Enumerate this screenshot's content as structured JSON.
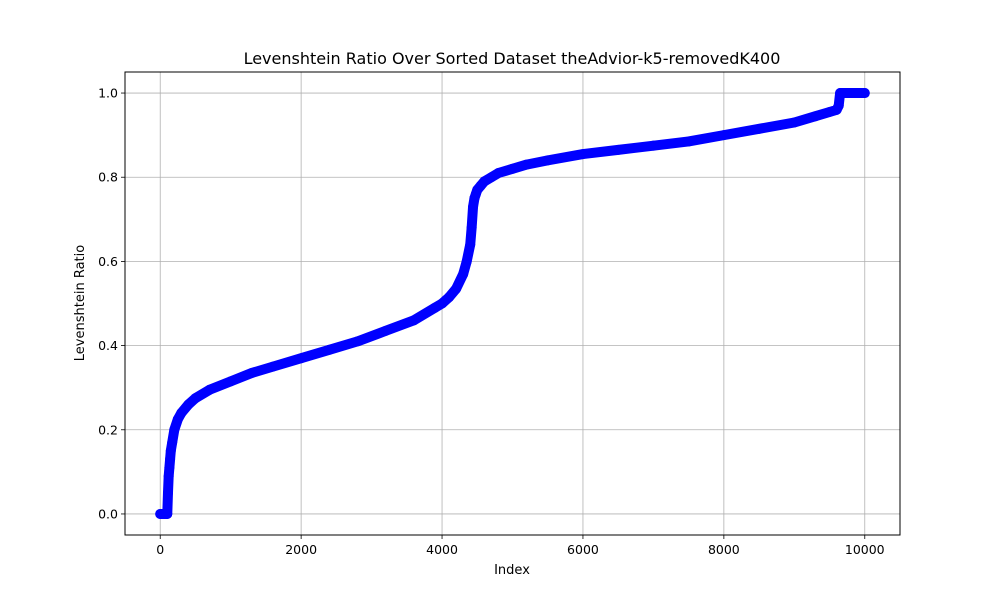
{
  "chart_data": {
    "type": "line",
    "title": "Levenshtein Ratio Over Sorted Dataset theAdvior-k5-removedK400",
    "xlabel": "Index",
    "ylabel": "Levenshtein Ratio",
    "xlim": [
      -500,
      10500
    ],
    "ylim": [
      -0.05,
      1.05
    ],
    "x_ticks": [
      0,
      2000,
      4000,
      6000,
      8000,
      10000
    ],
    "x_tick_labels": [
      "0",
      "2000",
      "4000",
      "6000",
      "8000",
      "10000"
    ],
    "y_ticks": [
      0.0,
      0.2,
      0.4,
      0.6,
      0.8,
      1.0
    ],
    "y_tick_labels": [
      "0.0",
      "0.2",
      "0.4",
      "0.6",
      "0.8",
      "1.0"
    ],
    "grid": true,
    "series": [
      {
        "color": "#0000ff",
        "marker": "circle",
        "x": [
          0,
          20,
          40,
          60,
          80,
          90,
          100,
          110,
          120,
          130,
          140,
          150,
          170,
          200,
          250,
          300,
          400,
          500,
          700,
          1000,
          1300,
          1600,
          2000,
          2400,
          2800,
          3200,
          3600,
          3900,
          4000,
          4100,
          4200,
          4300,
          4350,
          4400,
          4420,
          4440,
          4460,
          4480,
          4500,
          4550,
          4600,
          4700,
          4800,
          5000,
          5200,
          5500,
          6000,
          6500,
          7000,
          7500,
          8000,
          8500,
          9000,
          9300,
          9500,
          9600,
          9630,
          9650,
          9660,
          9700,
          9800,
          9900,
          10000
        ],
        "y": [
          0.0,
          0.0,
          0.0,
          0.0,
          0.0,
          0.0,
          0.0,
          0.05,
          0.09,
          0.11,
          0.13,
          0.15,
          0.17,
          0.2,
          0.225,
          0.24,
          0.26,
          0.275,
          0.295,
          0.315,
          0.335,
          0.35,
          0.37,
          0.39,
          0.41,
          0.435,
          0.46,
          0.49,
          0.5,
          0.515,
          0.535,
          0.57,
          0.6,
          0.64,
          0.68,
          0.73,
          0.75,
          0.76,
          0.77,
          0.78,
          0.79,
          0.8,
          0.81,
          0.82,
          0.83,
          0.84,
          0.855,
          0.865,
          0.875,
          0.885,
          0.9,
          0.915,
          0.93,
          0.945,
          0.955,
          0.96,
          0.97,
          1.0,
          1.0,
          1.0,
          1.0,
          1.0,
          1.0
        ]
      }
    ]
  }
}
